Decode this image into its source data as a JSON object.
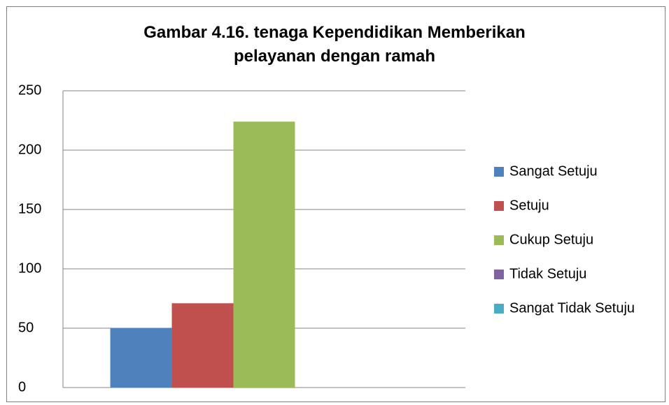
{
  "chart_data": {
    "type": "bar",
    "title": "Gambar 4.16. tenaga Kependidikan Memberikan pelayanan dengan ramah",
    "categories": [
      null
    ],
    "series": [
      {
        "name": "Sangat Setuju",
        "color": "#4f81bd",
        "values": [
          50
        ]
      },
      {
        "name": "Setuju",
        "color": "#c0504d",
        "values": [
          71
        ]
      },
      {
        "name": "Cukup Setuju",
        "color": "#9bbb59",
        "values": [
          224
        ]
      },
      {
        "name": "Tidak Setuju",
        "color": "#8064a2",
        "values": [
          0
        ]
      },
      {
        "name": "Sangat Tidak Setuju",
        "color": "#4bacc6",
        "values": [
          0
        ]
      }
    ],
    "ylim": [
      0,
      250
    ],
    "yticks": [
      0,
      50,
      100,
      150,
      200,
      250
    ],
    "grid": true,
    "legend": "right"
  }
}
